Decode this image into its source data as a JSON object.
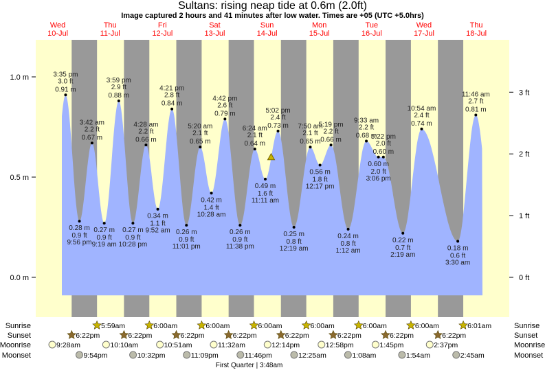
{
  "title": "Sultans: rising  neap tide at 0.6m (2.0ft)",
  "subtitle": "Image captured 2 hours and 41 minutes after low water. Times are +05 (UTC +5.0hrs)",
  "colors": {
    "day": "#ffffcc",
    "night": "#999999",
    "water": "#a0b4ff",
    "dayLabel": "#ff0000",
    "sun": "#c8b400",
    "sunset": "#8b6a2f"
  },
  "days": [
    {
      "dow": "Wed",
      "date": "10-Jul"
    },
    {
      "dow": "Thu",
      "date": "11-Jul"
    },
    {
      "dow": "Fri",
      "date": "12-Jul"
    },
    {
      "dow": "Sat",
      "date": "13-Jul"
    },
    {
      "dow": "Sun",
      "date": "14-Jul"
    },
    {
      "dow": "Mon",
      "date": "15-Jul"
    },
    {
      "dow": "Tue",
      "date": "16-Jul"
    },
    {
      "dow": "Wed",
      "date": "17-Jul"
    },
    {
      "dow": "Thu",
      "date": "18-Jul"
    }
  ],
  "chart_data": {
    "type": "area",
    "xlabel": "",
    "ylabel": "Tide height",
    "ylim_m": [
      -0.18,
      1.18
    ],
    "yticks_m": [
      "1.0 m",
      "0.5 m",
      "0.0 m"
    ],
    "yticks_ft": [
      "3 ft",
      "2 ft",
      "1 ft",
      "0 ft"
    ],
    "current": {
      "day": 4,
      "time": "1:52 pm",
      "m": 0.6
    },
    "events": [
      {
        "type": "high",
        "day": 0,
        "time": "3:35 pm",
        "ft": "3.0 ft",
        "m": 0.91
      },
      {
        "type": "low",
        "day": 0,
        "time": "9:56 pm",
        "ft": "0.9 ft",
        "m": 0.28
      },
      {
        "type": "high",
        "day": 1,
        "time": "3:42 am",
        "ft": "2.2 ft",
        "m": 0.67
      },
      {
        "type": "low",
        "day": 1,
        "time": "9:19 am",
        "ft": "0.9 ft",
        "m": 0.27
      },
      {
        "type": "high",
        "day": 1,
        "time": "3:59 pm",
        "ft": "2.9 ft",
        "m": 0.88
      },
      {
        "type": "low",
        "day": 1,
        "time": "10:28 pm",
        "ft": "0.9 ft",
        "m": 0.27
      },
      {
        "type": "high",
        "day": 2,
        "time": "4:28 am",
        "ft": "2.2 ft",
        "m": 0.66
      },
      {
        "type": "low",
        "day": 2,
        "time": "9:52 am",
        "ft": "1.1 ft",
        "m": 0.34
      },
      {
        "type": "high",
        "day": 2,
        "time": "4:21 pm",
        "ft": "2.8 ft",
        "m": 0.84
      },
      {
        "type": "low",
        "day": 2,
        "time": "11:01 pm",
        "ft": "0.9 ft",
        "m": 0.26
      },
      {
        "type": "high",
        "day": 3,
        "time": "5:20 am",
        "ft": "2.1 ft",
        "m": 0.65
      },
      {
        "type": "low",
        "day": 3,
        "time": "10:28 am",
        "ft": "1.4 ft",
        "m": 0.42
      },
      {
        "type": "high",
        "day": 3,
        "time": "4:42 pm",
        "ft": "2.6 ft",
        "m": 0.79
      },
      {
        "type": "low",
        "day": 3,
        "time": "11:38 pm",
        "ft": "0.9 ft",
        "m": 0.26
      },
      {
        "type": "high",
        "day": 4,
        "time": "6:24 am",
        "ft": "2.1 ft",
        "m": 0.64
      },
      {
        "type": "low",
        "day": 4,
        "time": "11:11 am",
        "ft": "1.6 ft",
        "m": 0.49
      },
      {
        "type": "high",
        "day": 4,
        "time": "5:02 pm",
        "ft": "2.4 ft",
        "m": 0.73
      },
      {
        "type": "low",
        "day": 5,
        "time": "12:19 am",
        "ft": "0.8 ft",
        "m": 0.25
      },
      {
        "type": "high",
        "day": 5,
        "time": "7:50 am",
        "ft": "2.1 ft",
        "m": 0.65
      },
      {
        "type": "low",
        "day": 5,
        "time": "12:17 pm",
        "ft": "1.8 ft",
        "m": 0.56
      },
      {
        "type": "high",
        "day": 5,
        "time": "5:19 pm",
        "ft": "2.2 ft",
        "m": 0.66
      },
      {
        "type": "low",
        "day": 6,
        "time": "1:12 am",
        "ft": "0.8 ft",
        "m": 0.24
      },
      {
        "type": "high",
        "day": 6,
        "time": "9:33 am",
        "ft": "2.2 ft",
        "m": 0.68
      },
      {
        "type": "low",
        "day": 6,
        "time": "3:06 pm",
        "ft": "2.0 ft",
        "m": 0.6
      },
      {
        "type": "high",
        "day": 6,
        "time": "5:22 pm",
        "ft": "2.0 ft",
        "m": 0.6
      },
      {
        "type": "low",
        "day": 7,
        "time": "2:19 am",
        "ft": "0.7 ft",
        "m": 0.22
      },
      {
        "type": "high",
        "day": 7,
        "time": "10:54 am",
        "ft": "2.4 ft",
        "m": 0.74
      },
      {
        "type": "low",
        "day": 8,
        "time": "3:30 am",
        "ft": "0.6 ft",
        "m": 0.18
      },
      {
        "type": "high",
        "day": 8,
        "time": "11:46 am",
        "ft": "2.7 ft",
        "m": 0.81
      }
    ]
  },
  "rows": {
    "labels": {
      "sunrise": "Sunrise",
      "sunset": "Sunset",
      "moonrise": "Moonrise",
      "moonset": "Moonset"
    },
    "sunrise": [
      {
        "day": 1,
        "time": "5:59am"
      },
      {
        "day": 2,
        "time": "6:00am"
      },
      {
        "day": 3,
        "time": "6:00am"
      },
      {
        "day": 4,
        "time": "6:00am"
      },
      {
        "day": 5,
        "time": "6:00am"
      },
      {
        "day": 6,
        "time": "6:00am"
      },
      {
        "day": 7,
        "time": "6:00am"
      },
      {
        "day": 8,
        "time": "6:01am"
      }
    ],
    "sunset": [
      {
        "day": 0,
        "time": "6:22pm"
      },
      {
        "day": 1,
        "time": "6:22pm"
      },
      {
        "day": 2,
        "time": "6:22pm"
      },
      {
        "day": 3,
        "time": "6:22pm"
      },
      {
        "day": 4,
        "time": "6:22pm"
      },
      {
        "day": 5,
        "time": "6:22pm"
      },
      {
        "day": 6,
        "time": "6:22pm"
      },
      {
        "day": 7,
        "time": "6:22pm"
      }
    ],
    "moonrise": [
      {
        "day": 0,
        "time": "9:28am"
      },
      {
        "day": 1,
        "time": "10:10am"
      },
      {
        "day": 2,
        "time": "10:51am"
      },
      {
        "day": 3,
        "time": "11:32am"
      },
      {
        "day": 4,
        "time": "12:14pm"
      },
      {
        "day": 5,
        "time": "12:58pm"
      },
      {
        "day": 6,
        "time": "1:45pm"
      },
      {
        "day": 7,
        "time": "2:37pm"
      }
    ],
    "moonset": [
      {
        "day": 0,
        "time": "9:54pm"
      },
      {
        "day": 1,
        "time": "10:32pm"
      },
      {
        "day": 2,
        "time": "11:09pm"
      },
      {
        "day": 3,
        "time": "11:46pm"
      },
      {
        "day": 5,
        "time": "12:25am"
      },
      {
        "day": 6,
        "time": "1:08am"
      },
      {
        "day": 7,
        "time": "1:54am"
      },
      {
        "day": 8,
        "time": "2:45am"
      }
    ],
    "moon_phase": "First Quarter | 3:48am"
  }
}
